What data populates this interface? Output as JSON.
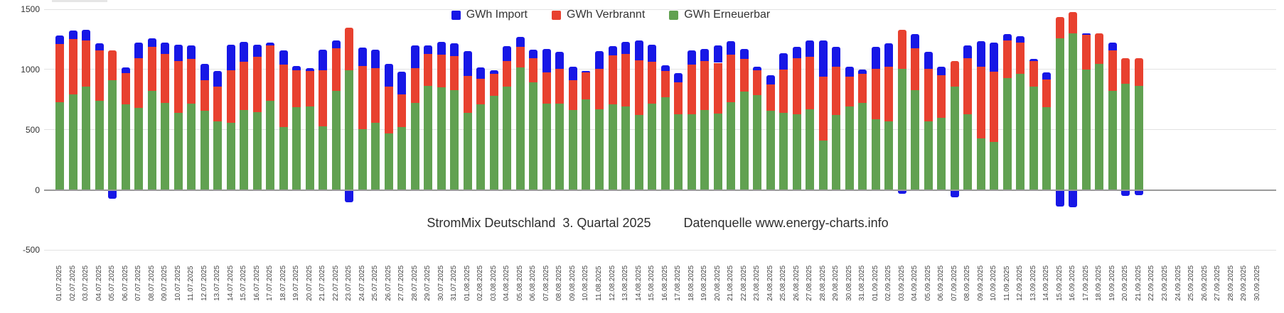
{
  "title": {
    "left": "StromMix Deutschland  3. Quartal 2025",
    "right": "Datenquelle www.energy-charts.info"
  },
  "legend": {
    "items": [
      {
        "label": "GWh Import",
        "color": "#1717e6"
      },
      {
        "label": "GWh Verbrannt",
        "color": "#e8412f"
      },
      {
        "label": "GWh Erneuerbar",
        "color": "#61a151"
      }
    ]
  },
  "y_axis": {
    "ticks": [
      1500,
      1000,
      500,
      0,
      -500
    ],
    "tick_labels": [
      "1500",
      "1000",
      "500",
      "0",
      "-500"
    ]
  },
  "chart_data": {
    "type": "bar",
    "stacked": true,
    "title": "StromMix Deutschland 3. Quartal 2025",
    "subtitle": "Datenquelle www.energy-charts.info",
    "ylim": [
      -500,
      1500
    ],
    "grid": true,
    "legend_position": "top",
    "x_tick_rotation": -90,
    "categories": [
      "01.07.2025",
      "02.07.2025",
      "03.07.2025",
      "04.07.2025",
      "05.07.2025",
      "06.07.2025",
      "07.07.2025",
      "08.07.2025",
      "09.07.2025",
      "10.07.2025",
      "11.07.2025",
      "12.07.2025",
      "13.07.2025",
      "14.07.2025",
      "15.07.2025",
      "16.07.2025",
      "17.07.2025",
      "18.07.2025",
      "19.07.2025",
      "20.07.2025",
      "21.07.2025",
      "22.07.2025",
      "23.07.2025",
      "24.07.2025",
      "25.07.2025",
      "26.07.2025",
      "27.07.2025",
      "28.07.2025",
      "29.07.2025",
      "30.07.2025",
      "31.07.2025",
      "01.08.2025",
      "02.08.2025",
      "03.08.2025",
      "04.08.2025",
      "05.08.2025",
      "06.08.2025",
      "07.08.2025",
      "08.08.2025",
      "09.08.2025",
      "10.08.2025",
      "11.08.2025",
      "12.08.2025",
      "13.08.2025",
      "14.08.2025",
      "15.08.2025",
      "16.08.2025",
      "17.08.2025",
      "18.08.2025",
      "19.08.2025",
      "20.08.2025",
      "21.08.2025",
      "22.08.2025",
      "23.08.2025",
      "24.08.2025",
      "25.08.2025",
      "26.08.2025",
      "27.08.2025",
      "28.08.2025",
      "29.08.2025",
      "30.08.2025",
      "31.08.2025",
      "01.09.2025",
      "02.09.2025",
      "03.09.2025",
      "04.09.2025",
      "05.09.2025",
      "06.09.2025",
      "07.09.2025",
      "08.09.2025",
      "09.09.2025",
      "10.09.2025",
      "11.09.2025",
      "12.09.2025",
      "13.09.2025",
      "14.09.2025",
      "15.09.2025",
      "16.09.2025",
      "17.09.2025",
      "18.09.2025",
      "19.09.2025",
      "20.09.2025",
      "21.09.2025",
      "22.09.2025",
      "23.09.2025",
      "24.09.2025",
      "25.09.2025",
      "26.09.2025",
      "27.09.2025",
      "28.09.2025",
      "29.09.2025",
      "30.09.2025"
    ],
    "series": [
      {
        "name": "GWh Import",
        "color": "#1717e6",
        "values": [
          70,
          75,
          90,
          60,
          -70,
          45,
          130,
          75,
          95,
          135,
          115,
          135,
          125,
          210,
          165,
          100,
          25,
          120,
          35,
          25,
          170,
          65,
          -100,
          150,
          155,
          190,
          185,
          190,
          70,
          105,
          105,
          210,
          95,
          30,
          125,
          85,
          70,
          195,
          140,
          115,
          10,
          150,
          80,
          100,
          165,
          140,
          50,
          80,
          120,
          100,
          145,
          115,
          85,
          30,
          75,
          135,
          95,
          135,
          300,
          165,
          80,
          35,
          185,
          195,
          -25,
          120,
          140,
          70,
          -55,
          105,
          210,
          245,
          55,
          50,
          20,
          60,
          -135,
          -140,
          15,
          0,
          65,
          -45,
          -40,
          null,
          null,
          null,
          null,
          null,
          null,
          null,
          null,
          null
        ]
      },
      {
        "name": "GWh Verbrannt",
        "color": "#e8412f",
        "values": [
          480,
          460,
          380,
          420,
          250,
          260,
          415,
          365,
          410,
          430,
          370,
          255,
          290,
          440,
          400,
          460,
          460,
          520,
          310,
          295,
          470,
          355,
          350,
          525,
          455,
          385,
          275,
          290,
          265,
          275,
          280,
          305,
          210,
          185,
          215,
          170,
          205,
          260,
          290,
          245,
          225,
          335,
          405,
          440,
          455,
          350,
          215,
          260,
          410,
          405,
          420,
          395,
          270,
          210,
          220,
          360,
          470,
          435,
          530,
          405,
          245,
          245,
          420,
          450,
          325,
          345,
          435,
          350,
          215,
          470,
          600,
          580,
          310,
          260,
          210,
          230,
          175,
          175,
          285,
          255,
          340,
          215,
          230,
          null,
          null,
          null,
          null,
          null,
          null,
          null,
          null,
          null
        ]
      },
      {
        "name": "GWh Erneuerbar",
        "color": "#61a151",
        "values": [
          730,
          790,
          860,
          740,
          910,
          710,
          680,
          820,
          720,
          640,
          715,
          655,
          570,
          555,
          665,
          645,
          740,
          520,
          685,
          690,
          525,
          820,
          995,
          505,
          555,
          470,
          520,
          720,
          865,
          850,
          830,
          640,
          710,
          780,
          855,
          1015,
          890,
          715,
          715,
          665,
          750,
          670,
          710,
          690,
          620,
          715,
          770,
          630,
          630,
          665,
          635,
          725,
          815,
          785,
          655,
          640,
          625,
          670,
          410,
          620,
          695,
          720,
          585,
          570,
          1005,
          830,
          570,
          600,
          855,
          625,
          425,
          400,
          930,
          965,
          860,
          685,
          1260,
          1300,
          1000,
          1045,
          820,
          880,
          865,
          null,
          null,
          null,
          null,
          null,
          null,
          null,
          null,
          null
        ]
      }
    ]
  }
}
